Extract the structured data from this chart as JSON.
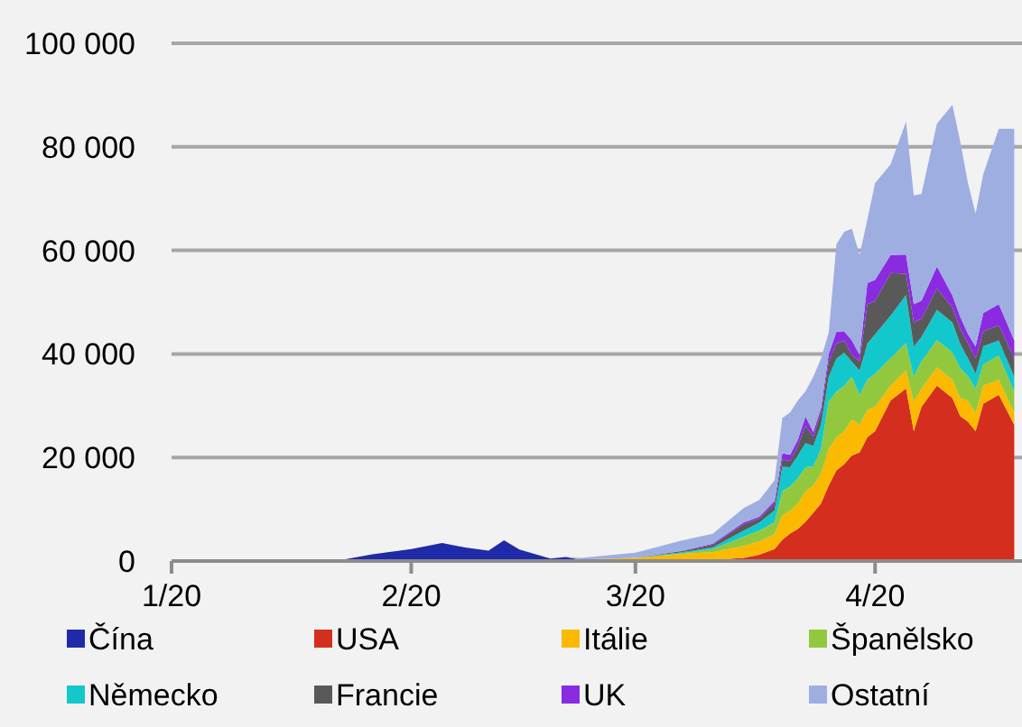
{
  "chart_data": {
    "type": "area",
    "stacked": true,
    "grid": "y",
    "legend": "bottom",
    "x": [
      "2020-01-01",
      "2020-01-20",
      "2020-01-23",
      "2020-01-27",
      "2020-02-01",
      "2020-02-05",
      "2020-02-08",
      "2020-02-11",
      "2020-02-13",
      "2020-02-15",
      "2020-02-19",
      "2020-02-21",
      "2020-02-23",
      "2020-03-01",
      "2020-03-07",
      "2020-03-11",
      "2020-03-15",
      "2020-03-17",
      "2020-03-19",
      "2020-03-20",
      "2020-03-21",
      "2020-03-22",
      "2020-03-23",
      "2020-03-24",
      "2020-03-25",
      "2020-03-26",
      "2020-03-27",
      "2020-03-28",
      "2020-03-29",
      "2020-03-30",
      "2020-03-31",
      "2020-04-01",
      "2020-04-03",
      "2020-04-05",
      "2020-04-06",
      "2020-04-07",
      "2020-04-09",
      "2020-04-11",
      "2020-04-12",
      "2020-04-13",
      "2020-04-14",
      "2020-04-15",
      "2020-04-17",
      "2020-04-19"
    ],
    "xlim": [
      "2020-01-01",
      "2020-04-20"
    ],
    "xticks": [
      {
        "value": "2020-01-01",
        "label": "1/20"
      },
      {
        "value": "2020-02-01",
        "label": "2/20"
      },
      {
        "value": "2020-03-01",
        "label": "3/20"
      },
      {
        "value": "2020-04-01",
        "label": "4/20"
      }
    ],
    "ylim": [
      0,
      100000
    ],
    "yticks": [
      0,
      {
        "value": 20000,
        "label": "20 000"
      },
      {
        "value": 40000,
        "label": "40 000"
      },
      {
        "value": 60000,
        "label": "60 000"
      },
      {
        "value": 80000,
        "label": "80 000"
      },
      {
        "value": 100000,
        "label": "100 000"
      }
    ],
    "series": [
      {
        "name": "Čína",
        "color": "#1f2aa8",
        "values": [
          0,
          0,
          200,
          1300,
          2300,
          3500,
          2600,
          2000,
          4000,
          2200,
          500,
          800,
          200,
          300,
          100,
          0,
          0,
          0,
          0,
          0,
          0,
          0,
          0,
          0,
          0,
          0,
          0,
          0,
          0,
          0,
          0,
          0,
          0,
          0,
          0,
          0,
          0,
          0,
          0,
          0,
          0,
          0,
          0,
          0
        ]
      },
      {
        "name": "USA",
        "color": "#d42e1f",
        "values": [
          0,
          0,
          0,
          0,
          0,
          0,
          0,
          0,
          0,
          0,
          0,
          0,
          0,
          0,
          100,
          200,
          600,
          1200,
          2300,
          4100,
          5300,
          6200,
          7600,
          9300,
          11100,
          14600,
          17500,
          18700,
          20400,
          21000,
          23900,
          25100,
          31000,
          33300,
          25100,
          29800,
          33900,
          31500,
          28000,
          26900,
          25100,
          30400,
          32100,
          26300
        ]
      },
      {
        "name": "Itálie",
        "color": "#fbb900",
        "values": [
          0,
          0,
          0,
          0,
          0,
          0,
          0,
          0,
          0,
          0,
          0,
          0,
          100,
          300,
          1200,
          1500,
          2300,
          2600,
          2900,
          4700,
          4400,
          4900,
          5800,
          5300,
          5800,
          7000,
          6400,
          6400,
          7000,
          5300,
          5300,
          4700,
          2900,
          3500,
          5800,
          3500,
          3500,
          3500,
          3500,
          4100,
          3500,
          3500,
          2900,
          2300
        ]
      },
      {
        "name": "Španělsko",
        "color": "#92c83e",
        "values": [
          0,
          0,
          0,
          0,
          0,
          0,
          0,
          0,
          0,
          0,
          0,
          0,
          0,
          0,
          100,
          600,
          1800,
          2100,
          2300,
          4700,
          4700,
          4900,
          4700,
          3700,
          4700,
          9300,
          8800,
          8800,
          8200,
          5800,
          5800,
          6400,
          5300,
          5300,
          4700,
          5300,
          5300,
          5300,
          5800,
          4700,
          4700,
          4100,
          4700,
          4100
        ]
      },
      {
        "name": "Německo",
        "color": "#13c8cc",
        "values": [
          0,
          0,
          0,
          0,
          0,
          0,
          0,
          0,
          0,
          0,
          0,
          0,
          0,
          0,
          200,
          350,
          1200,
          1500,
          2300,
          4700,
          3700,
          4400,
          4700,
          3900,
          4700,
          4700,
          6400,
          6400,
          2900,
          4700,
          7000,
          7600,
          8200,
          9300,
          5800,
          4700,
          5800,
          5800,
          4700,
          3500,
          2900,
          3500,
          2900,
          2900
        ]
      },
      {
        "name": "Francie",
        "color": "#595959",
        "values": [
          0,
          0,
          0,
          0,
          0,
          0,
          0,
          0,
          0,
          0,
          0,
          0,
          0,
          0,
          200,
          500,
          1200,
          800,
          1200,
          1400,
          1200,
          1800,
          3300,
          1800,
          2300,
          2900,
          2900,
          2300,
          1200,
          1800,
          7600,
          6400,
          8200,
          4100,
          4700,
          3500,
          4100,
          2900,
          2900,
          2900,
          2900,
          2900,
          2900,
          3500
        ]
      },
      {
        "name": "UK",
        "color": "#8a2be2",
        "values": [
          0,
          0,
          0,
          0,
          0,
          0,
          0,
          0,
          0,
          0,
          0,
          0,
          0,
          0,
          50,
          200,
          350,
          350,
          600,
          1200,
          1200,
          1200,
          1800,
          900,
          900,
          1500,
          2300,
          1800,
          2900,
          1200,
          4100,
          4100,
          3500,
          3700,
          3500,
          3500,
          4300,
          2300,
          2300,
          1800,
          2300,
          3500,
          4100,
          3500
        ]
      },
      {
        "name": "Ostatní",
        "color": "#9eaee0",
        "values": [
          0,
          0,
          0,
          0,
          0,
          0,
          0,
          0,
          0,
          0,
          0,
          0,
          300,
          1000,
          2000,
          1900,
          2800,
          3200,
          4000,
          6800,
          8200,
          7600,
          4900,
          10700,
          9600,
          4100,
          16900,
          19200,
          21600,
          19300,
          12300,
          18700,
          17500,
          25700,
          21000,
          20600,
          27600,
          36800,
          33900,
          29200,
          25700,
          26900,
          33900,
          40900
        ]
      }
    ]
  }
}
